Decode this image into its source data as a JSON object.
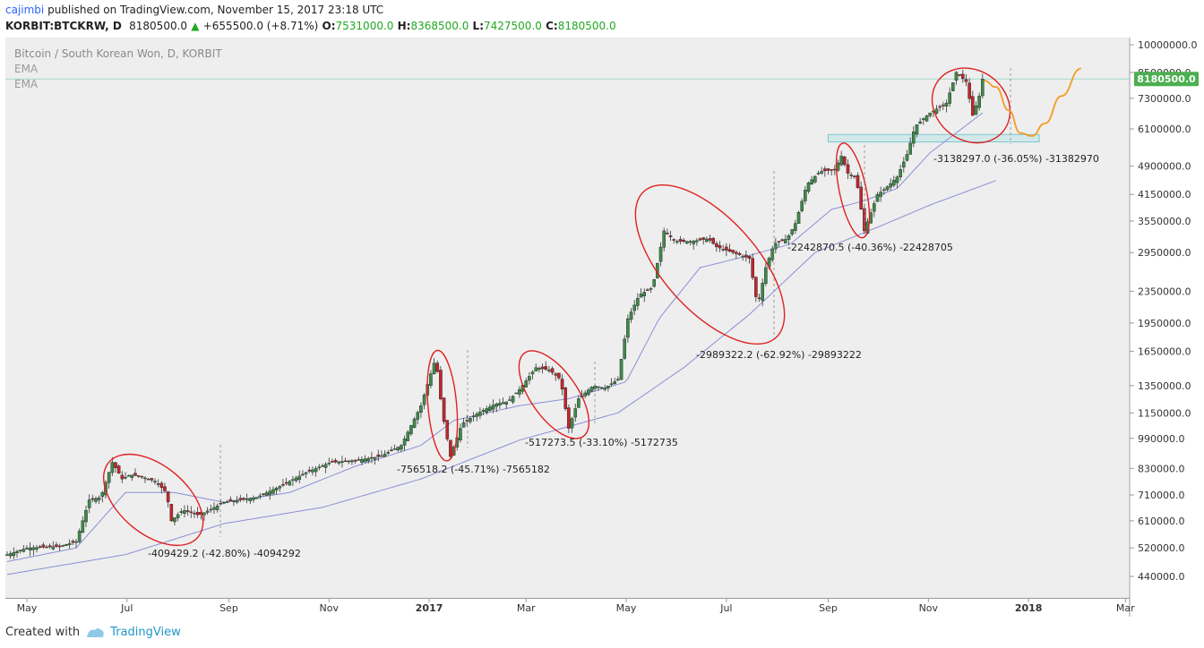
{
  "header": {
    "author": "cajimbi",
    "published_text": "published on TradingView.com, November 15, 2017 23:18 UTC",
    "symbol": "KORBIT:BTCKRW, D",
    "last": "8180500.0",
    "arrow": "▲",
    "change": "+655500.0 (+8.71%)",
    "open_label": "O:",
    "open": "7531000.0",
    "high_label": "H:",
    "high": "8368500.0",
    "low_label": "L:",
    "low": "7427500.0",
    "close_label": "C:",
    "close": "8180500.0"
  },
  "footer": {
    "created_with": "Created with",
    "brand": "TradingView"
  },
  "colors": {
    "background": "#eeeeee",
    "up_candle": "#3f8a4a",
    "down_candle": "#c0272d",
    "ellipse": "#e02020",
    "ema": "#8a8fd6",
    "projection": "#f59a23",
    "price_tag": "#4caf50",
    "box": "#bfe6e8"
  },
  "chart_data": {
    "type": "candlestick",
    "title": "Bitcoin / South Korean Won, D, KORBIT",
    "legend": [
      "EMA",
      "EMA"
    ],
    "scale": "log",
    "ylim": [
      380000,
      10500000
    ],
    "y_ticks": [
      10000000,
      8500000,
      7300000,
      6100000,
      4900000,
      4150000,
      3550000,
      2950000,
      2350000,
      1950000,
      1650000,
      1350000,
      1150000,
      990000,
      830000,
      710000,
      610000,
      520000,
      440000
    ],
    "y_tick_labels": [
      "10000000.0",
      "8500000.0",
      "7300000.0",
      "6100000.0",
      "4900000.0",
      "4150000.0",
      "3550000.0",
      "2950000.0",
      "2350000.0",
      "1950000.0",
      "1650000.0",
      "1350000.0",
      "1150000.0",
      "990000.0",
      "830000.0",
      "710000.0",
      "610000.0",
      "520000.0",
      "440000.0"
    ],
    "x_ticks": [
      {
        "label": "May",
        "day": 0,
        "bold": false
      },
      {
        "label": "Jul",
        "day": 61,
        "bold": false
      },
      {
        "label": "Sep",
        "day": 123,
        "bold": false
      },
      {
        "label": "Nov",
        "day": 184,
        "bold": false
      },
      {
        "label": "2017",
        "day": 245,
        "bold": true
      },
      {
        "label": "Mar",
        "day": 304,
        "bold": false
      },
      {
        "label": "May",
        "day": 365,
        "bold": false
      },
      {
        "label": "Jul",
        "day": 426,
        "bold": false
      },
      {
        "label": "Sep",
        "day": 488,
        "bold": false
      },
      {
        "label": "Nov",
        "day": 549,
        "bold": false
      },
      {
        "label": "2018",
        "day": 610,
        "bold": true
      },
      {
        "label": "Mar",
        "day": 669,
        "bold": false
      }
    ],
    "price_path": [
      [
        -12,
        500000
      ],
      [
        0,
        520000
      ],
      [
        20,
        525000
      ],
      [
        30,
        540000
      ],
      [
        38,
        690000
      ],
      [
        45,
        700000
      ],
      [
        52,
        860000
      ],
      [
        58,
        780000
      ],
      [
        63,
        800000
      ],
      [
        70,
        790000
      ],
      [
        78,
        770000
      ],
      [
        85,
        720000
      ],
      [
        88,
        610000
      ],
      [
        95,
        650000
      ],
      [
        105,
        630000
      ],
      [
        120,
        680000
      ],
      [
        140,
        700000
      ],
      [
        155,
        750000
      ],
      [
        170,
        810000
      ],
      [
        185,
        860000
      ],
      [
        200,
        870000
      ],
      [
        215,
        890000
      ],
      [
        228,
        950000
      ],
      [
        240,
        1200000
      ],
      [
        249,
        1590000
      ],
      [
        253,
        1150000
      ],
      [
        258,
        890000
      ],
      [
        265,
        1080000
      ],
      [
        275,
        1150000
      ],
      [
        285,
        1210000
      ],
      [
        293,
        1230000
      ],
      [
        300,
        1320000
      ],
      [
        310,
        1500000
      ],
      [
        318,
        1480000
      ],
      [
        325,
        1400000
      ],
      [
        330,
        1050000
      ],
      [
        336,
        1250000
      ],
      [
        345,
        1350000
      ],
      [
        352,
        1330000
      ],
      [
        360,
        1400000
      ],
      [
        366,
        2000000
      ],
      [
        373,
        2300000
      ],
      [
        381,
        2400000
      ],
      [
        388,
        3350000
      ],
      [
        395,
        3150000
      ],
      [
        405,
        3150000
      ],
      [
        415,
        3200000
      ],
      [
        420,
        3050000
      ],
      [
        430,
        2950000
      ],
      [
        440,
        2850000
      ],
      [
        445,
        2150000
      ],
      [
        450,
        2700000
      ],
      [
        455,
        3100000
      ],
      [
        463,
        3200000
      ],
      [
        468,
        3500000
      ],
      [
        475,
        4400000
      ],
      [
        483,
        4750000
      ],
      [
        492,
        4800000
      ],
      [
        496,
        5200000
      ],
      [
        500,
        4700000
      ],
      [
        505,
        4600000
      ],
      [
        510,
        3350000
      ],
      [
        518,
        4150000
      ],
      [
        523,
        4300000
      ],
      [
        530,
        4600000
      ],
      [
        536,
        5250000
      ],
      [
        541,
        6200000
      ],
      [
        550,
        6700000
      ],
      [
        560,
        7100000
      ],
      [
        566,
        8500000
      ],
      [
        572,
        8050000
      ],
      [
        576,
        6600000
      ],
      [
        580,
        7400000
      ],
      [
        582,
        8180500
      ]
    ],
    "ema_fast": [
      [
        -12,
        480000
      ],
      [
        30,
        520000
      ],
      [
        60,
        720000
      ],
      [
        90,
        720000
      ],
      [
        120,
        680000
      ],
      [
        160,
        720000
      ],
      [
        200,
        840000
      ],
      [
        240,
        950000
      ],
      [
        260,
        1100000
      ],
      [
        300,
        1200000
      ],
      [
        330,
        1250000
      ],
      [
        365,
        1380000
      ],
      [
        385,
        2000000
      ],
      [
        410,
        2700000
      ],
      [
        440,
        2900000
      ],
      [
        465,
        3100000
      ],
      [
        490,
        3800000
      ],
      [
        510,
        4000000
      ],
      [
        530,
        4300000
      ],
      [
        550,
        5300000
      ],
      [
        582,
        6700000
      ]
    ],
    "ema_slow": [
      [
        -12,
        445000
      ],
      [
        60,
        500000
      ],
      [
        120,
        600000
      ],
      [
        180,
        660000
      ],
      [
        240,
        780000
      ],
      [
        300,
        980000
      ],
      [
        360,
        1150000
      ],
      [
        400,
        1500000
      ],
      [
        440,
        2050000
      ],
      [
        480,
        2950000
      ],
      [
        520,
        3450000
      ],
      [
        550,
        3900000
      ],
      [
        590,
        4500000
      ]
    ],
    "drawdowns": [
      {
        "label": "-409429.2 (-42.80%) -4094292",
        "start_day": 52,
        "end_day": 90,
        "center_day": 77,
        "center_price": 690000
      },
      {
        "label": "-756518.2 (-45.71%) -7565182",
        "start_day": 249,
        "end_day": 258,
        "center_day": 253,
        "center_price": 1200000
      },
      {
        "label": "-517273.5 (-33.10%) -5172735",
        "start_day": 312,
        "end_day": 330,
        "center_day": 321,
        "center_price": 1280000
      },
      {
        "label": "-2989322.2 (-62.92%) -29893222",
        "start_day": 388,
        "end_day": 445,
        "center_day": 416,
        "center_price": 2750000
      },
      {
        "label": "-2242870.5 (-40.36%) -22428705",
        "start_day": 496,
        "end_day": 510,
        "center_day": 503,
        "center_price": 4250000
      },
      {
        "label": "-3138297.0 (-36.05%) -31382970",
        "start_day": 566,
        "end_day": 620,
        "center_day": 575,
        "center_price": 7000000
      }
    ],
    "projection": [
      [
        583,
        8100000
      ],
      [
        590,
        7800000
      ],
      [
        598,
        6800000
      ],
      [
        605,
        5950000
      ],
      [
        612,
        5850000
      ],
      [
        620,
        6300000
      ],
      [
        630,
        7400000
      ],
      [
        642,
        8700000
      ]
    ],
    "support_zone": {
      "start_day": 488,
      "end_day": 650,
      "top": 5900000,
      "bottom": 5650000
    },
    "current_price": 8180500,
    "current_price_label": "8180500.0"
  }
}
